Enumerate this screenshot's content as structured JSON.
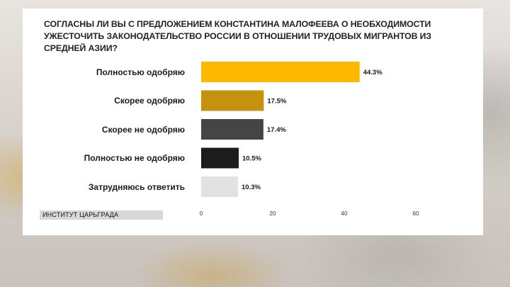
{
  "chart_data": {
    "type": "bar",
    "orientation": "horizontal",
    "title": "СОГЛАСНЫ ЛИ ВЫ С ПРЕДЛОЖЕНИЕМ КОНСТАНТИНА МАЛОФЕЕВА О НЕОБХОДИМОСТИ УЖЕСТОЧИТЬ ЗАКОНОДАТЕЛЬСТВО РОССИИ В ОТНОШЕНИИ ТРУДОВЫХ МИГРАНТОВ ИЗ СРЕДНЕЙ АЗИИ?",
    "categories": [
      "Полностью одобряю",
      "Скорее одобряю",
      "Скорее не одобряю",
      "Полностью не одобряю",
      "Затрудняюсь ответить"
    ],
    "values": [
      44.3,
      17.5,
      17.4,
      10.5,
      10.3
    ],
    "value_labels": [
      "44.3%",
      "17.5%",
      "17.4%",
      "10.5%",
      "10.3%"
    ],
    "colors": [
      "#ffb800",
      "#c4920c",
      "#454545",
      "#1c1c1c",
      "#e2e2e2"
    ],
    "xlim": [
      0,
      60
    ],
    "xticks": [
      0,
      20,
      40,
      60
    ],
    "xlabel": "",
    "ylabel": "",
    "grid": false,
    "legend": "none"
  },
  "source": "ИНСТИТУТ ЦАРЬГРАДА"
}
